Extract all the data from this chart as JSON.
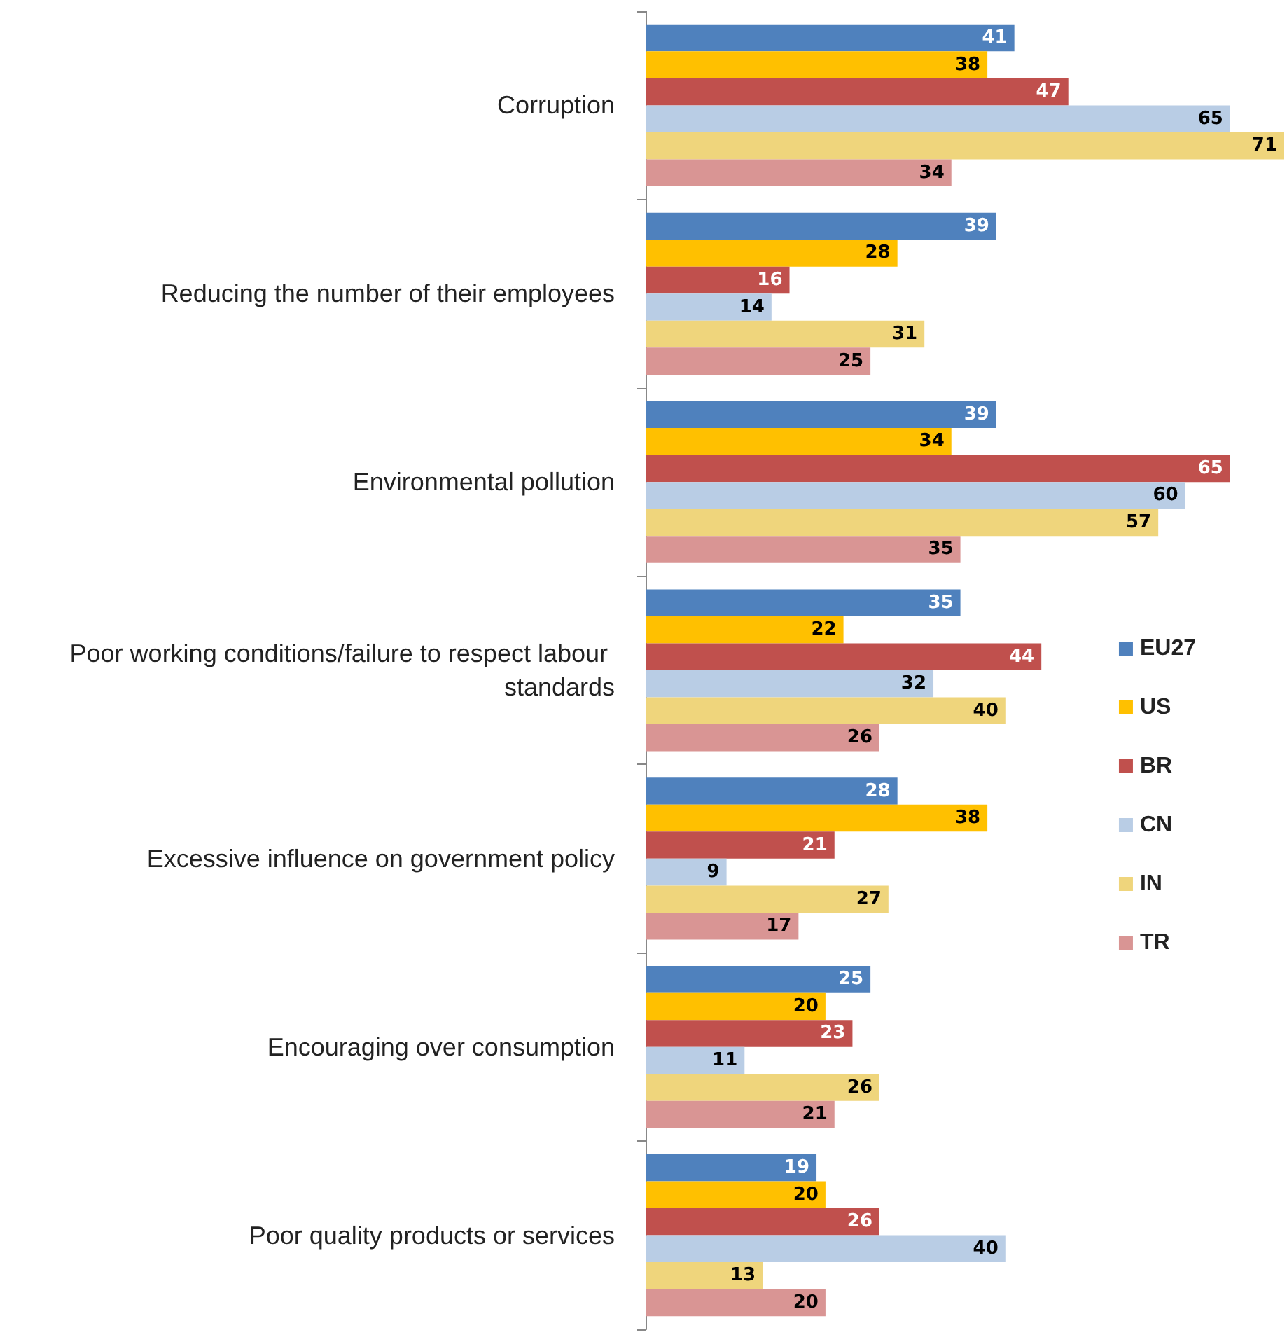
{
  "chart_data": {
    "type": "bar",
    "orientation": "horizontal",
    "data_labels": true,
    "legend": "right",
    "categories": [
      "Corruption",
      "Reducing the number of their employees",
      "Environmental pollution",
      "Poor working conditions/failure to respect labour standards",
      "Excessive influence on government policy",
      "Encouraging over consumption",
      "Poor quality products or services"
    ],
    "series": [
      {
        "name": "EU27",
        "color": "#4f81bd",
        "values": [
          41,
          39,
          39,
          35,
          28,
          25,
          19
        ]
      },
      {
        "name": "US",
        "color": "#ffc000",
        "values": [
          38,
          28,
          34,
          22,
          38,
          20,
          20
        ]
      },
      {
        "name": "BR",
        "color": "#c0504d",
        "values": [
          47,
          16,
          65,
          44,
          21,
          23,
          26
        ]
      },
      {
        "name": "CN",
        "color": "#b9cde5",
        "values": [
          65,
          14,
          60,
          32,
          9,
          11,
          40
        ]
      },
      {
        "name": "IN",
        "color": "#efd57c",
        "values": [
          71,
          31,
          57,
          40,
          27,
          26,
          13
        ]
      },
      {
        "name": "TR",
        "color": "#d99594",
        "values": [
          34,
          25,
          35,
          26,
          17,
          21,
          20
        ]
      }
    ]
  }
}
